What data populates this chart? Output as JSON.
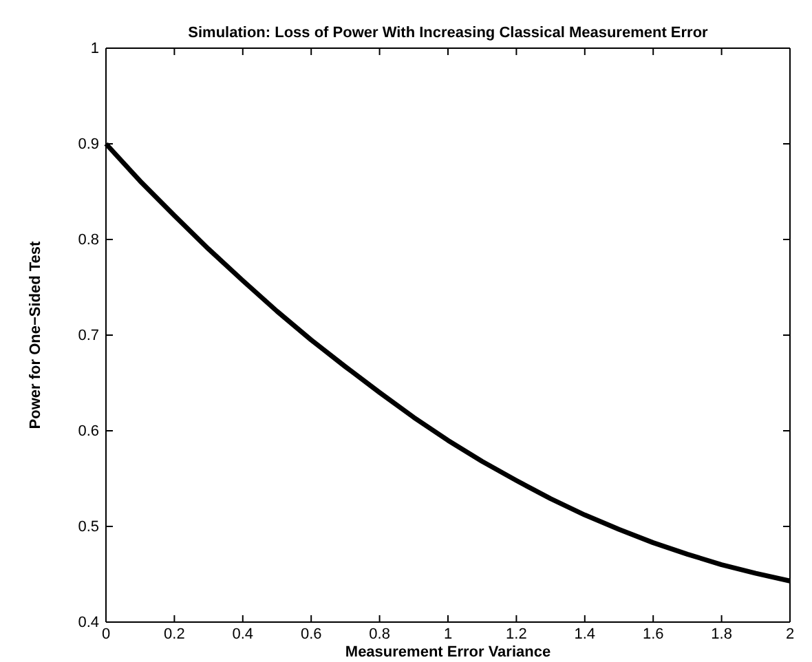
{
  "chart_data": {
    "type": "line",
    "title": "Simulation: Loss of Power With Increasing Classical Measurement Error",
    "xlabel": "Measurement Error Variance",
    "ylabel": "Power for One−Sided Test",
    "x": [
      0,
      0.1,
      0.2,
      0.3,
      0.4,
      0.5,
      0.6,
      0.7,
      0.8,
      0.9,
      1.0,
      1.1,
      1.2,
      1.3,
      1.4,
      1.5,
      1.6,
      1.7,
      1.8,
      1.9,
      2.0
    ],
    "series": [
      {
        "color": "#000000",
        "values": [
          0.9,
          0.861,
          0.825,
          0.79,
          0.757,
          0.725,
          0.695,
          0.667,
          0.64,
          0.614,
          0.59,
          0.568,
          0.548,
          0.529,
          0.512,
          0.497,
          0.483,
          0.471,
          0.46,
          0.451,
          0.443
        ]
      }
    ],
    "xlim": [
      0,
      2
    ],
    "xticks": [
      0,
      0.2,
      0.4,
      0.6,
      0.8,
      1,
      1.2,
      1.4,
      1.6,
      1.8,
      2
    ],
    "ylim": [
      0.4,
      1
    ],
    "yticks": [
      0.4,
      0.5,
      0.6,
      0.7,
      0.8,
      0.9,
      1
    ],
    "grid": false,
    "marker": "none",
    "line_style": "solid"
  }
}
